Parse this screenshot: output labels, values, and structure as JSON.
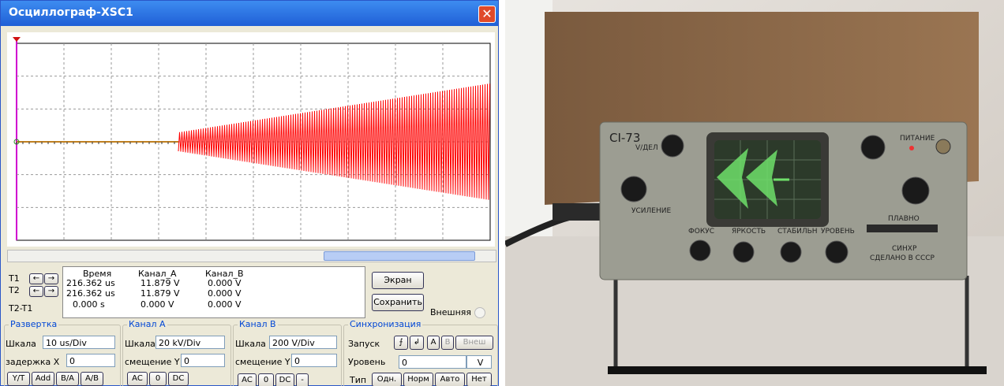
{
  "window": {
    "title": "Осциллограф-XSC1"
  },
  "readout": {
    "headers": [
      "Время",
      "Канал_A",
      "Канал_B"
    ],
    "rows": [
      {
        "label": "T1",
        "values": [
          "216.362 us",
          "11.879 V",
          "0.000 V"
        ]
      },
      {
        "label": "T2",
        "values": [
          "216.362 us",
          "11.879 V",
          "0.000 V"
        ]
      },
      {
        "label": "T2-T1",
        "values": [
          "0.000 s",
          "0.000 V",
          "0.000 V"
        ]
      }
    ]
  },
  "buttons": {
    "screen": "Экран",
    "save": "Сохранить",
    "external": "Внешняя"
  },
  "timebase": {
    "title": "Развертка",
    "scale_label": "Шкала",
    "scale": "10 us/Div",
    "delay_label": "задержка X",
    "delay": "0",
    "modes": [
      "Y/T",
      "Add",
      "B/A",
      "A/B"
    ]
  },
  "channel_a": {
    "title": "Канал A",
    "scale_label": "Шкала",
    "scale": "20 kV/Div",
    "offset_label": "смещение Y",
    "offset": "0",
    "coupling": [
      "AC",
      "0",
      "DC"
    ]
  },
  "channel_b": {
    "title": "Канал B",
    "scale_label": "Шкала",
    "scale": "200  V/Div",
    "offset_label": "смещение Y",
    "offset": "0",
    "coupling": [
      "AC",
      "0",
      "DC",
      "-"
    ]
  },
  "trigger": {
    "title": "Синхронизация",
    "edge_label": "Запуск",
    "sources": [
      "A",
      "B",
      "Внеш"
    ],
    "level_label": "Уровень",
    "level": "0",
    "level_unit": "V",
    "type_label": "Тип",
    "types": [
      "Одн.",
      "Норм",
      "Авто",
      "Нет"
    ]
  },
  "photo": {
    "labels": {
      "model": "CI-73",
      "volts": "V/ДЕЛ",
      "gain": "УСИЛЕНИЕ",
      "focus": "ФОКУС",
      "brightness": "ЯРКОСТЬ",
      "stability": "СТАБИЛЬН",
      "level": "УРОВЕНЬ",
      "power": "ПИТАНИЕ",
      "smooth": "ПЛАВНО",
      "sync": "СИНХР",
      "made": "СДЕЛАНО В СССР"
    }
  }
}
